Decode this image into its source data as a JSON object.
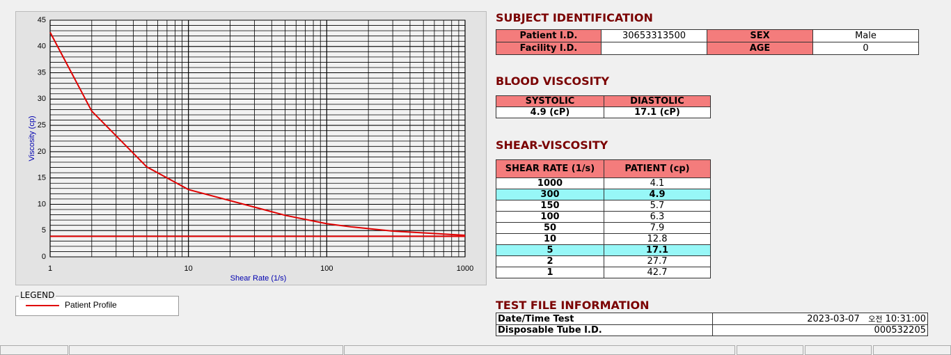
{
  "chart_data": {
    "type": "line",
    "xlabel": "Shear Rate (1/s)",
    "ylabel": "Viscosity (cp)",
    "xlim": [
      1,
      1000
    ],
    "xticks": [
      1,
      10,
      100,
      1000
    ],
    "xlog": true,
    "ylim": [
      0,
      45
    ],
    "yticks": [
      0,
      5,
      10,
      15,
      20,
      25,
      30,
      35,
      40,
      45
    ],
    "grid": true,
    "minor_grid": true,
    "legend_title": "LEGEND",
    "series": [
      {
        "name": "Patient Profile",
        "color": "#e00000",
        "x": [
          1,
          2,
          5,
          10,
          50,
          100,
          150,
          300,
          1000
        ],
        "values": [
          42.7,
          27.7,
          17.1,
          12.8,
          7.9,
          6.3,
          5.7,
          4.9,
          4.1
        ]
      },
      {
        "color": "#e00000",
        "x": [
          1,
          1000
        ],
        "values": [
          3.9,
          3.9
        ]
      }
    ]
  },
  "subject": {
    "title": "SUBJECT IDENTIFICATION",
    "patient_id_label": "Patient I.D.",
    "patient_id": "30653313500",
    "sex_label": "SEX",
    "sex": "Male",
    "facility_id_label": "Facility I.D.",
    "age_label": "AGE",
    "age": "0"
  },
  "blood": {
    "title": "BLOOD VISCOSITY",
    "headers": [
      "SYSTOLIC",
      "DIASTOLIC"
    ],
    "values": [
      "4.9 (cP)",
      "17.1 (cP)"
    ]
  },
  "shear": {
    "title": "SHEAR-VISCOSITY",
    "headers": [
      "SHEAR RATE (1/s)",
      "PATIENT (cp)"
    ]
  },
  "test_file": {
    "title": "TEST FILE INFORMATION",
    "date_label": "Date/Time Test",
    "date": "2023-03-07",
    "ampm": "오전",
    "time": "10:31:00",
    "tube_label": "Disposable Tube I.D.",
    "tube": "000532205"
  }
}
